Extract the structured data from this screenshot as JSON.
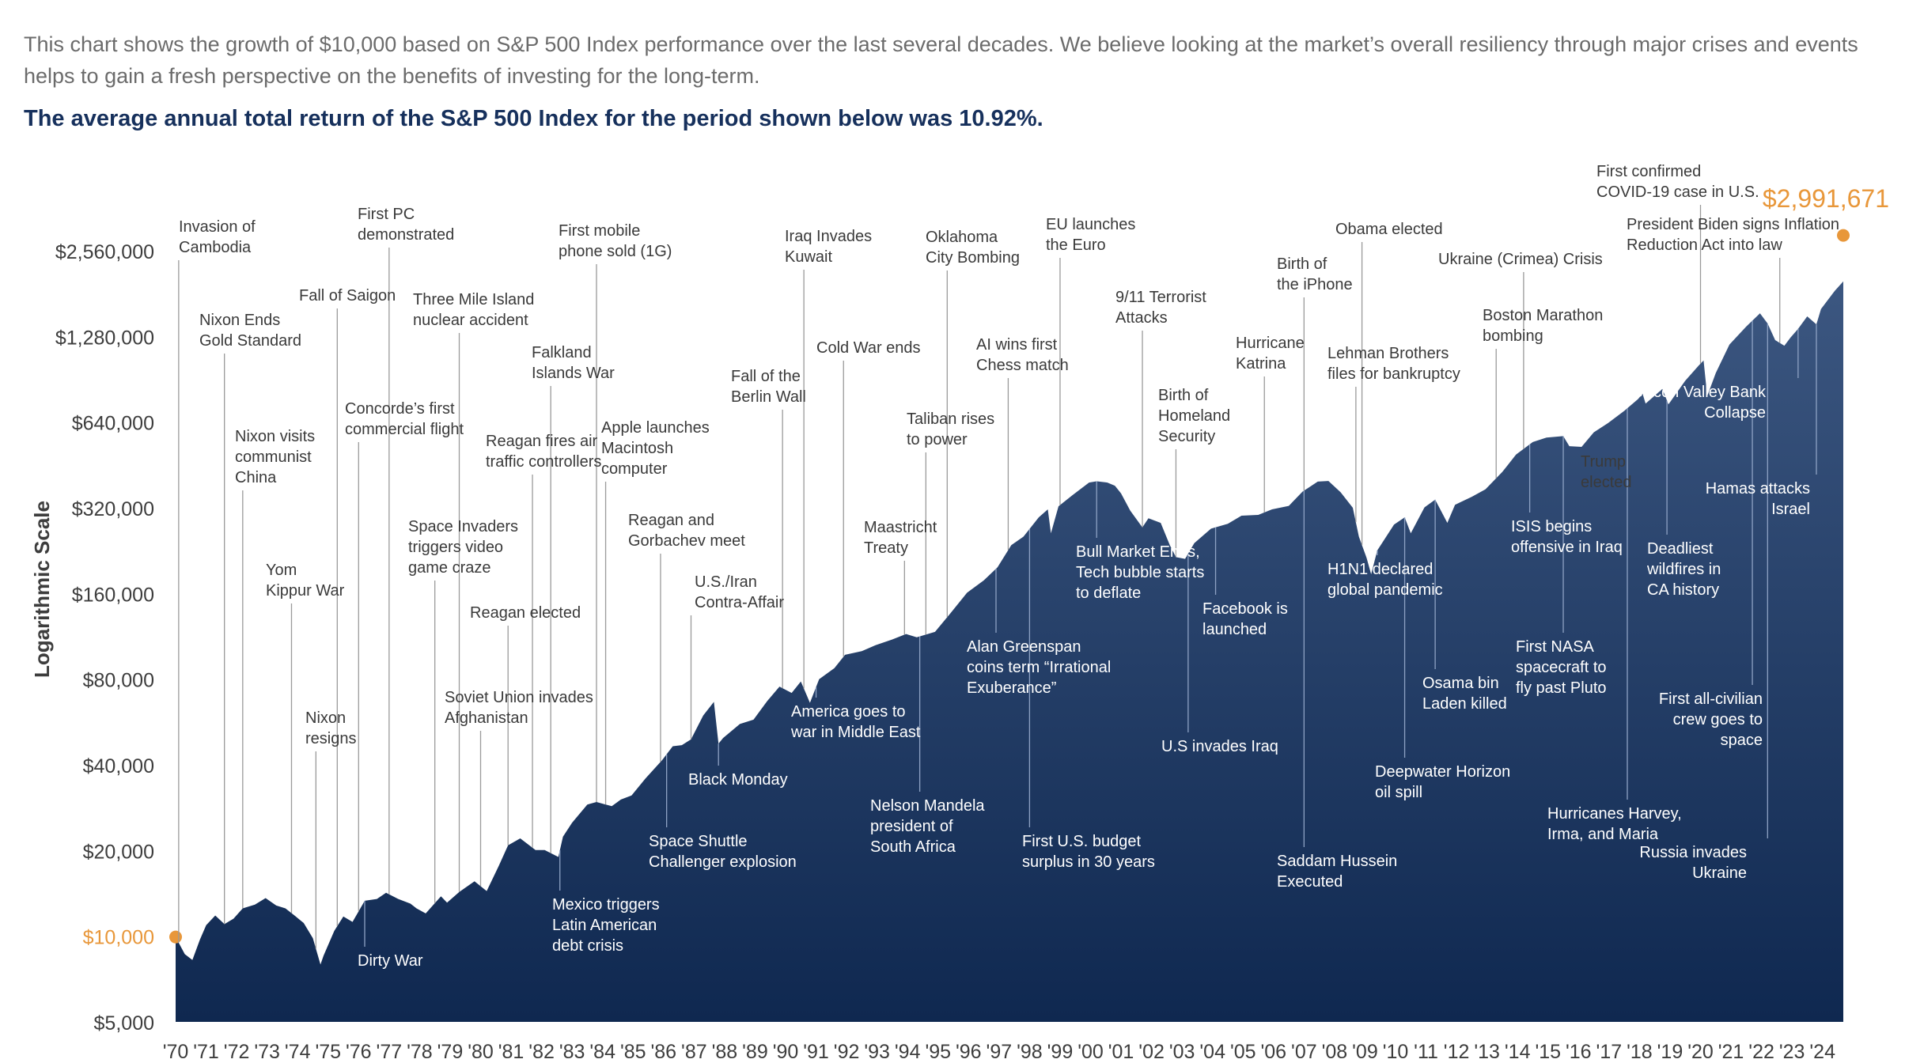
{
  "intro": "This chart shows the growth of $10,000 based on S&P 500 Index performance over the last several decades. We believe looking at the market’s overall resiliency through major crises and events helps to gain a fresh perspective on the benefits of investing for the long-term.",
  "average_return": "The average annual total return of the S&P 500 Index for the period shown below was 10.92%.",
  "colors": {
    "area_top": "#3f5a84",
    "area_bottom": "#0f2850",
    "accent": "#e8973a",
    "leader": "#9a9a9a"
  },
  "chart_data": {
    "type": "area",
    "ylabel": "Logarithmic Scale",
    "y_scale": "log",
    "ylim": [
      5000,
      3000000
    ],
    "y_ticks": [
      {
        "value": 5000,
        "label": "$5,000"
      },
      {
        "value": 10000,
        "label": "$10,000",
        "highlight": true
      },
      {
        "value": 20000,
        "label": "$20,000"
      },
      {
        "value": 40000,
        "label": "$40,000"
      },
      {
        "value": 80000,
        "label": "$80,000"
      },
      {
        "value": 160000,
        "label": "$160,000"
      },
      {
        "value": 320000,
        "label": "$320,000"
      },
      {
        "value": 640000,
        "label": "$640,000"
      },
      {
        "value": 1280000,
        "label": "$1,280,000"
      },
      {
        "value": 2560000,
        "label": "$2,560,000"
      }
    ],
    "x_ticks": [
      "'70",
      "'71",
      "'72",
      "'73",
      "'74",
      "'75",
      "'76",
      "'77",
      "'78",
      "'79",
      "'80",
      "'81",
      "'82",
      "'83",
      "'84",
      "'85",
      "'86",
      "'87",
      "'88",
      "'89",
      "'90",
      "'91",
      "'92",
      "'93",
      "'94",
      "'95",
      "'96",
      "'97",
      "'98",
      "'99",
      "'00",
      "'01",
      "'02",
      "'03",
      "'04",
      "'05",
      "'06",
      "'07",
      "'08",
      "'09",
      "'10",
      "'11",
      "'12",
      "'13",
      "'14",
      "'15",
      "'16",
      "'17",
      "'18",
      "'19",
      "'20",
      "'21",
      "'22",
      "'23",
      "'24"
    ],
    "xlim": [
      1970.0,
      2025.0
    ],
    "start_label": "$10,000",
    "end_label": "$2,991,671",
    "start_value": 10000,
    "end_value": 2991671,
    "series": [
      {
        "values": [
          [
            1970.0,
            10000
          ],
          [
            1970.3,
            8700
          ],
          [
            1970.55,
            8300
          ],
          [
            1970.8,
            9800
          ],
          [
            1971.0,
            11000
          ],
          [
            1971.3,
            11900
          ],
          [
            1971.6,
            11100
          ],
          [
            1971.9,
            11600
          ],
          [
            1972.2,
            12600
          ],
          [
            1972.6,
            13000
          ],
          [
            1972.95,
            13700
          ],
          [
            1973.3,
            12900
          ],
          [
            1973.6,
            12600
          ],
          [
            1973.9,
            11900
          ],
          [
            1974.2,
            11200
          ],
          [
            1974.5,
            9900
          ],
          [
            1974.75,
            8000
          ],
          [
            1974.85,
            8600
          ],
          [
            1975.2,
            10500
          ],
          [
            1975.5,
            11800
          ],
          [
            1975.8,
            11300
          ],
          [
            1976.2,
            13400
          ],
          [
            1976.6,
            13600
          ],
          [
            1976.9,
            14300
          ],
          [
            1977.3,
            13600
          ],
          [
            1977.7,
            13100
          ],
          [
            1977.9,
            12600
          ],
          [
            1978.2,
            12100
          ],
          [
            1978.7,
            13900
          ],
          [
            1978.9,
            13200
          ],
          [
            1979.3,
            14400
          ],
          [
            1979.8,
            15700
          ],
          [
            1980.2,
            14500
          ],
          [
            1980.6,
            17800
          ],
          [
            1980.9,
            21000
          ],
          [
            1981.3,
            22200
          ],
          [
            1981.8,
            20200
          ],
          [
            1982.1,
            20200
          ],
          [
            1982.55,
            19100
          ],
          [
            1982.7,
            22500
          ],
          [
            1983.0,
            25200
          ],
          [
            1983.5,
            29200
          ],
          [
            1983.8,
            29800
          ],
          [
            1984.3,
            28800
          ],
          [
            1984.6,
            30400
          ],
          [
            1984.95,
            31400
          ],
          [
            1985.4,
            36000
          ],
          [
            1985.95,
            41800
          ],
          [
            1986.3,
            46800
          ],
          [
            1986.6,
            47200
          ],
          [
            1986.9,
            49500
          ],
          [
            1987.3,
            60000
          ],
          [
            1987.65,
            67000
          ],
          [
            1987.8,
            47800
          ],
          [
            1987.95,
            50000
          ],
          [
            1988.5,
            56000
          ],
          [
            1988.95,
            58000
          ],
          [
            1989.4,
            67500
          ],
          [
            1989.8,
            75800
          ],
          [
            1990.2,
            72000
          ],
          [
            1990.5,
            79000
          ],
          [
            1990.8,
            66500
          ],
          [
            1991.1,
            80500
          ],
          [
            1991.6,
            88000
          ],
          [
            1991.95,
            98000
          ],
          [
            1992.5,
            101000
          ],
          [
            1992.95,
            106000
          ],
          [
            1993.5,
            111000
          ],
          [
            1993.95,
            116000
          ],
          [
            1994.3,
            113000
          ],
          [
            1994.9,
            118000
          ],
          [
            1995.4,
            137000
          ],
          [
            1995.95,
            162000
          ],
          [
            1996.5,
            179000
          ],
          [
            1996.95,
            199000
          ],
          [
            1997.4,
            238000
          ],
          [
            1997.8,
            255000
          ],
          [
            1998.3,
            298000
          ],
          [
            1998.6,
            318000
          ],
          [
            1998.7,
            262000
          ],
          [
            1998.95,
            326000
          ],
          [
            1999.4,
            356000
          ],
          [
            1999.95,
            395000
          ],
          [
            2000.2,
            399000
          ],
          [
            2000.55,
            395000
          ],
          [
            2000.8,
            385000
          ],
          [
            2001.0,
            362000
          ],
          [
            2001.3,
            315000
          ],
          [
            2001.7,
            275000
          ],
          [
            2001.9,
            296000
          ],
          [
            2002.3,
            285000
          ],
          [
            2002.6,
            238000
          ],
          [
            2002.8,
            216000
          ],
          [
            2003.1,
            213000
          ],
          [
            2003.4,
            242000
          ],
          [
            2003.95,
            272000
          ],
          [
            2004.5,
            283000
          ],
          [
            2004.95,
            302000
          ],
          [
            2005.5,
            304000
          ],
          [
            2005.95,
            318000
          ],
          [
            2006.5,
            327000
          ],
          [
            2006.95,
            367000
          ],
          [
            2007.45,
            398000
          ],
          [
            2007.8,
            400000
          ],
          [
            2008.2,
            365000
          ],
          [
            2008.6,
            322000
          ],
          [
            2008.8,
            255000
          ],
          [
            2009.05,
            215000
          ],
          [
            2009.2,
            188000
          ],
          [
            2009.4,
            228000
          ],
          [
            2009.95,
            281000
          ],
          [
            2010.3,
            298000
          ],
          [
            2010.5,
            262000
          ],
          [
            2010.95,
            323000
          ],
          [
            2011.3,
            344000
          ],
          [
            2011.7,
            285000
          ],
          [
            2011.95,
            330000
          ],
          [
            2012.5,
            352000
          ],
          [
            2012.95,
            374000
          ],
          [
            2013.5,
            430000
          ],
          [
            2013.95,
            495000
          ],
          [
            2014.5,
            548000
          ],
          [
            2014.95,
            568000
          ],
          [
            2015.5,
            575000
          ],
          [
            2015.7,
            530000
          ],
          [
            2016.1,
            527000
          ],
          [
            2016.5,
            593000
          ],
          [
            2016.95,
            637000
          ],
          [
            2017.5,
            705000
          ],
          [
            2017.95,
            776000
          ],
          [
            2018.1,
            810000
          ],
          [
            2018.2,
            748000
          ],
          [
            2018.75,
            842000
          ],
          [
            2018.95,
            743000
          ],
          [
            2019.5,
            900000
          ],
          [
            2019.95,
            1020000
          ],
          [
            2020.1,
            1060000
          ],
          [
            2020.22,
            795000
          ],
          [
            2020.5,
            958000
          ],
          [
            2020.95,
            1206000
          ],
          [
            2021.5,
            1395000
          ],
          [
            2021.95,
            1553000
          ],
          [
            2022.2,
            1430000
          ],
          [
            2022.45,
            1250000
          ],
          [
            2022.75,
            1195000
          ],
          [
            2022.95,
            1275000
          ],
          [
            2023.2,
            1370000
          ],
          [
            2023.5,
            1515000
          ],
          [
            2023.8,
            1420000
          ],
          [
            2023.95,
            1608000
          ],
          [
            2024.4,
            1860000
          ],
          [
            2024.7,
            2010000
          ],
          [
            2024.95,
            2080000
          ],
          [
            2025.2,
            2250000
          ],
          [
            2025.45,
            2540000
          ],
          [
            2025.55,
            2991671
          ]
        ]
      }
    ],
    "annotations": [
      {
        "text": [
          "Invasion of",
          "Cambodia"
        ],
        "x": 1970.1
      },
      {
        "text": [
          "Nixon Ends",
          "Gold Standard"
        ],
        "x": 1971.6
      },
      {
        "text": [
          "Nixon visits",
          "communist",
          "China"
        ],
        "x": 1972.2
      },
      {
        "text": [
          "Yom",
          "Kippur War"
        ],
        "x": 1973.8
      },
      {
        "text": [
          "Nixon",
          "resigns"
        ],
        "x": 1974.6
      },
      {
        "text": [
          "Fall of Saigon"
        ],
        "x": 1975.3
      },
      {
        "text": [
          "Concorde’s first",
          "commercial flight"
        ],
        "x": 1976.0
      },
      {
        "text": [
          "Dirty War"
        ],
        "x": 1976.2
      },
      {
        "text": [
          "First PC",
          "demonstrated"
        ],
        "x": 1977.0
      },
      {
        "text": [
          "Three Mile Island",
          "nuclear accident"
        ],
        "x": 1979.3
      },
      {
        "text": [
          "Space Invaders",
          "triggers video",
          "game craze"
        ],
        "x": 1978.5
      },
      {
        "text": [
          "Soviet Union invades",
          "Afghanistan"
        ],
        "x": 1980.0
      },
      {
        "text": [
          "Reagan elected"
        ],
        "x": 1980.9
      },
      {
        "text": [
          "Reagan fires air",
          "traffic controllers"
        ],
        "x": 1981.7
      },
      {
        "text": [
          "Falkland",
          "Islands War"
        ],
        "x": 1982.3
      },
      {
        "text": [
          "Mexico triggers",
          "Latin American",
          "debt crisis"
        ],
        "x": 1982.6
      },
      {
        "text": [
          "First mobile",
          "phone sold (1G)"
        ],
        "x": 1983.8
      },
      {
        "text": [
          "Apple launches",
          "Macintosh",
          "computer"
        ],
        "x": 1984.1
      },
      {
        "text": [
          "Reagan and",
          "Gorbachev meet"
        ],
        "x": 1985.9
      },
      {
        "text": [
          "Space Shuttle",
          "Challenger explosion"
        ],
        "x": 1986.1
      },
      {
        "text": [
          "U.S./Iran",
          "Contra-Affair"
        ],
        "x": 1986.9
      },
      {
        "text": [
          "Black Monday"
        ],
        "x": 1987.8
      },
      {
        "text": [
          "Fall of the",
          "Berlin Wall"
        ],
        "x": 1989.9
      },
      {
        "text": [
          "Iraq Invades",
          "Kuwait"
        ],
        "x": 1990.6
      },
      {
        "text": [
          "America goes to",
          "war in Middle East"
        ],
        "x": 1991.0
      },
      {
        "text": [
          "Cold War ends"
        ],
        "x": 1991.9
      },
      {
        "text": [
          "Maastricht",
          "Treaty"
        ],
        "x": 1993.9
      },
      {
        "text": [
          "Nelson Mandela",
          "president of",
          "South Africa"
        ],
        "x": 1994.4
      },
      {
        "text": [
          "Taliban rises",
          "to power"
        ],
        "x": 1994.6
      },
      {
        "text": [
          "Oklahoma",
          "City Bombing"
        ],
        "x": 1995.3
      },
      {
        "text": [
          "Alan Greenspan",
          "coins term “Irrational",
          "Exuberance”"
        ],
        "x": 1996.9
      },
      {
        "text": [
          "AI wins first",
          "Chess match"
        ],
        "x": 1997.3
      },
      {
        "text": [
          "First U.S. budget",
          "surplus in 30 years"
        ],
        "x": 1998.0
      },
      {
        "text": [
          "EU launches",
          "the Euro"
        ],
        "x": 1999.0
      },
      {
        "text": [
          "Bull Market Ends,",
          "Tech bubble starts",
          "to deflate"
        ],
        "x": 2000.2
      },
      {
        "text": [
          "9/11 Terrorist",
          "Attacks"
        ],
        "x": 2001.7
      },
      {
        "text": [
          "Birth of",
          "Homeland",
          "Security"
        ],
        "x": 2002.8
      },
      {
        "text": [
          "U.S invades Iraq"
        ],
        "x": 2003.2
      },
      {
        "text": [
          "Facebook is",
          "launched"
        ],
        "x": 2004.1
      },
      {
        "text": [
          "Hurricane",
          "Katrina"
        ],
        "x": 2005.7
      },
      {
        "text": [
          "Birth of",
          "the iPhone"
        ],
        "x": 2007.0
      },
      {
        "text": [
          "Saddam Hussein",
          "Executed"
        ],
        "x": 2007.0
      },
      {
        "text": [
          "Lehman Brothers",
          "files for bankruptcy"
        ],
        "x": 2008.7
      },
      {
        "text": [
          "Obama elected"
        ],
        "x": 2008.9
      },
      {
        "text": [
          "H1N1 declared",
          "global pandemic"
        ],
        "x": 2009.4
      },
      {
        "text": [
          "Deepwater Horizon",
          "oil spill"
        ],
        "x": 2010.3
      },
      {
        "text": [
          "Osama bin",
          "Laden killed"
        ],
        "x": 2011.3
      },
      {
        "text": [
          "Ukraine (Crimea) Crisis"
        ],
        "x": 2014.2
      },
      {
        "text": [
          "Boston Marathon",
          "bombing"
        ],
        "x": 2013.3
      },
      {
        "text": [
          "ISIS begins",
          "offensive in Iraq"
        ],
        "x": 2014.4
      },
      {
        "text": [
          "First NASA",
          "spacecraft to",
          "fly past Pluto"
        ],
        "x": 2015.5
      },
      {
        "text": [
          "Trump",
          "elected"
        ],
        "x": 2016.8
      },
      {
        "text": [
          "Hurricanes Harvey,",
          "Irma, and Maria"
        ],
        "x": 2017.6
      },
      {
        "text": [
          "Deadliest",
          "wildfires in",
          "CA history"
        ],
        "x": 2018.9
      },
      {
        "text": [
          "First confirmed",
          "COVID-19 case in U.S."
        ],
        "x": 2020.0
      },
      {
        "text": [
          "President Biden signs Inflation",
          "Reduction Act into law"
        ],
        "x": 2022.6
      },
      {
        "text": [
          "First all-civilian",
          "crew goes to",
          "space"
        ],
        "x": 2021.7
      },
      {
        "text": [
          "Russia invades",
          "Ukraine"
        ],
        "x": 2022.2
      },
      {
        "text": [
          "Silicon Valley Bank",
          "Collapse"
        ],
        "x": 2023.2
      },
      {
        "text": [
          "Hamas attacks",
          "Israel"
        ],
        "x": 2023.8
      }
    ]
  }
}
